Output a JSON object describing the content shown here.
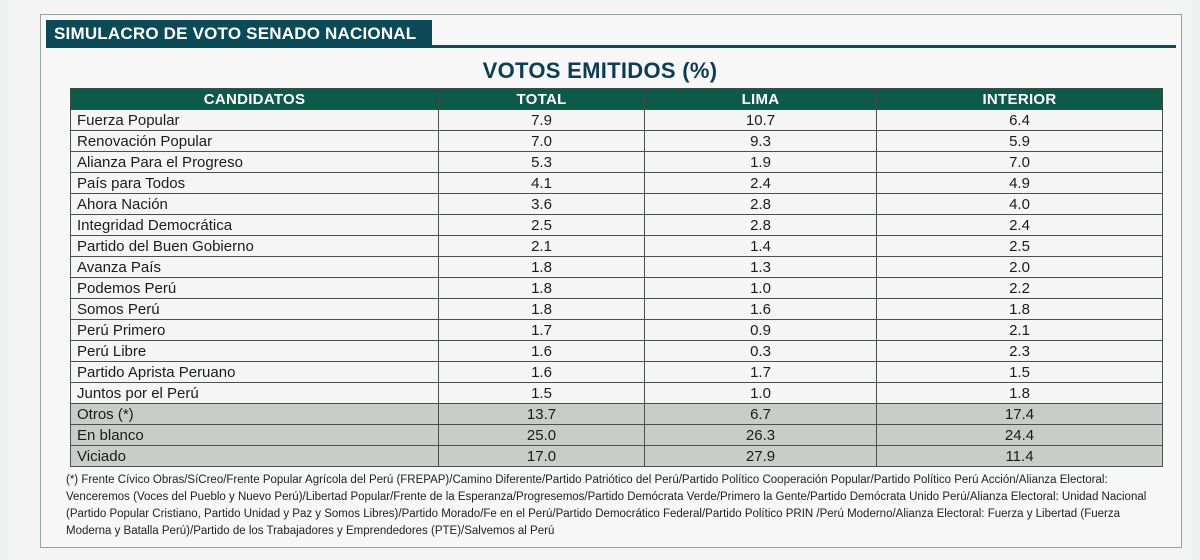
{
  "section_label": "SIMULACRO DE VOTO SENADO NACIONAL",
  "chart_data": {
    "type": "table",
    "title": "VOTOS EMITIDOS (%)",
    "columns": [
      "CANDIDATOS",
      "TOTAL",
      "LIMA",
      "INTERIOR"
    ],
    "rows": [
      {
        "name": "Fuerza Popular",
        "total": "7.9",
        "lima": "10.7",
        "interior": "6.4"
      },
      {
        "name": "Renovación Popular",
        "total": "7.0",
        "lima": "9.3",
        "interior": "5.9"
      },
      {
        "name": "Alianza Para el Progreso",
        "total": "5.3",
        "lima": "1.9",
        "interior": "7.0"
      },
      {
        "name": "País para Todos",
        "total": "4.1",
        "lima": "2.4",
        "interior": "4.9"
      },
      {
        "name": "Ahora Nación",
        "total": "3.6",
        "lima": "2.8",
        "interior": "4.0"
      },
      {
        "name": "Integridad Democrática",
        "total": "2.5",
        "lima": "2.8",
        "interior": "2.4"
      },
      {
        "name": "Partido del Buen Gobierno",
        "total": "2.1",
        "lima": "1.4",
        "interior": "2.5"
      },
      {
        "name": "Avanza País",
        "total": "1.8",
        "lima": "1.3",
        "interior": "2.0"
      },
      {
        "name": "Podemos Perú",
        "total": "1.8",
        "lima": "1.0",
        "interior": "2.2"
      },
      {
        "name": "Somos Perú",
        "total": "1.8",
        "lima": "1.6",
        "interior": "1.8"
      },
      {
        "name": "Perú Primero",
        "total": "1.7",
        "lima": "0.9",
        "interior": "2.1"
      },
      {
        "name": "Perú Libre",
        "total": "1.6",
        "lima": "0.3",
        "interior": "2.3"
      },
      {
        "name": "Partido Aprista Peruano",
        "total": "1.6",
        "lima": "1.7",
        "interior": "1.5"
      },
      {
        "name": "Juntos por el Perú",
        "total": "1.5",
        "lima": "1.0",
        "interior": "1.8"
      },
      {
        "name": "Otros (*)",
        "total": "13.7",
        "lima": "6.7",
        "interior": "17.4"
      },
      {
        "name": "En blanco",
        "total": "25.0",
        "lima": "26.3",
        "interior": "24.4"
      },
      {
        "name": "Viciado",
        "total": "17.0",
        "lima": "27.9",
        "interior": "11.4"
      }
    ],
    "shaded_rows": [
      "Otros (*)",
      "En blanco",
      "Viciado"
    ]
  },
  "footnote": "(*) Frente Cívico Obras/SíCreo/Frente Popular Agrícola del Perú (FREPAP)/Camino Diferente/Partido Patriótico del Perú/Partido Político Cooperación Popular/Partido Político Perú Acción/Alianza Electoral: Venceremos (Voces del Pueblo y Nuevo Perú)/Libertad Popular/Frente de la Esperanza/Progresemos/Partido Demócrata Verde/Primero la Gente/Partido Demócrata Unido Perú/Alianza Electoral: Unidad Nacional (Partido Popular Cristiano, Partido Unidad y Paz y Somos Libres)/Partido Morado/Fe en el Perú/Partido Democrático Federal/Partido Político PRIN /Perú Moderno/Alianza Electoral: Fuerza y Libertad (Fuerza Moderna y Batalla Perú)/Partido de los Trabajadores y Emprendedores (PTE)/Salvemos al Perú"
}
